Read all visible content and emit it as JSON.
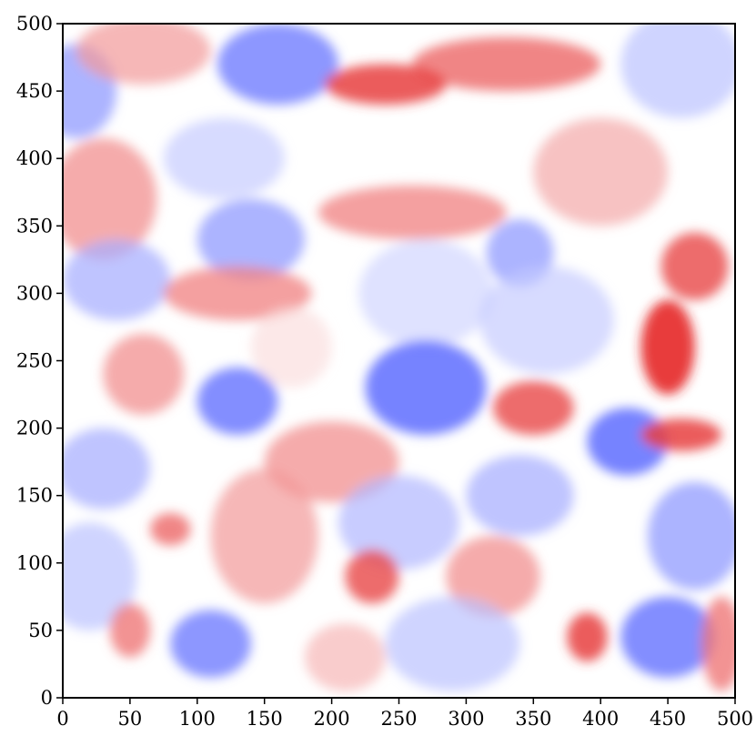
{
  "chart_data": {
    "type": "heatmap",
    "title": "",
    "xlabel": "",
    "ylabel": "",
    "xlim": [
      0,
      500
    ],
    "ylim": [
      0,
      500
    ],
    "x_ticks": [
      0,
      50,
      100,
      150,
      200,
      250,
      300,
      350,
      400,
      450,
      500
    ],
    "y_ticks": [
      0,
      50,
      100,
      150,
      200,
      250,
      300,
      350,
      400,
      450,
      500
    ],
    "x_tick_labels": [
      "0",
      "50",
      "100",
      "150",
      "200",
      "250",
      "300",
      "350",
      "400",
      "450",
      "500"
    ],
    "y_tick_labels": [
      "0",
      "50",
      "100",
      "150",
      "200",
      "250",
      "300",
      "350",
      "400",
      "450",
      "500"
    ],
    "grid": false,
    "legend": "none",
    "colormap": {
      "name": "diverging blue-white-red",
      "low_color": "#3b4cff",
      "mid_color": "#ffffff",
      "high_color": "#e00000"
    },
    "features": [
      {
        "x": 10,
        "y": 450,
        "value": -0.55,
        "sx": 30,
        "sy": 35
      },
      {
        "x": 160,
        "y": 470,
        "value": -0.7,
        "sx": 45,
        "sy": 30
      },
      {
        "x": 330,
        "y": 470,
        "value": 0.6,
        "sx": 70,
        "sy": 20
      },
      {
        "x": 240,
        "y": 455,
        "value": 0.75,
        "sx": 45,
        "sy": 15
      },
      {
        "x": 60,
        "y": 480,
        "value": 0.4,
        "sx": 50,
        "sy": 25
      },
      {
        "x": 460,
        "y": 470,
        "value": -0.35,
        "sx": 45,
        "sy": 40
      },
      {
        "x": 30,
        "y": 370,
        "value": 0.45,
        "sx": 40,
        "sy": 45
      },
      {
        "x": 120,
        "y": 400,
        "value": -0.3,
        "sx": 45,
        "sy": 30
      },
      {
        "x": 260,
        "y": 360,
        "value": 0.5,
        "sx": 70,
        "sy": 20
      },
      {
        "x": 340,
        "y": 330,
        "value": -0.55,
        "sx": 25,
        "sy": 25
      },
      {
        "x": 400,
        "y": 390,
        "value": 0.35,
        "sx": 50,
        "sy": 40
      },
      {
        "x": 140,
        "y": 340,
        "value": -0.55,
        "sx": 40,
        "sy": 30
      },
      {
        "x": 40,
        "y": 310,
        "value": -0.45,
        "sx": 40,
        "sy": 30
      },
      {
        "x": 130,
        "y": 300,
        "value": 0.5,
        "sx": 55,
        "sy": 20
      },
      {
        "x": 270,
        "y": 300,
        "value": -0.25,
        "sx": 50,
        "sy": 40
      },
      {
        "x": 360,
        "y": 280,
        "value": -0.3,
        "sx": 50,
        "sy": 40
      },
      {
        "x": 470,
        "y": 320,
        "value": 0.7,
        "sx": 25,
        "sy": 25
      },
      {
        "x": 450,
        "y": 260,
        "value": 0.85,
        "sx": 20,
        "sy": 35
      },
      {
        "x": 60,
        "y": 240,
        "value": 0.45,
        "sx": 30,
        "sy": 30
      },
      {
        "x": 130,
        "y": 220,
        "value": -0.75,
        "sx": 30,
        "sy": 25
      },
      {
        "x": 270,
        "y": 230,
        "value": -0.8,
        "sx": 45,
        "sy": 35
      },
      {
        "x": 350,
        "y": 215,
        "value": 0.7,
        "sx": 30,
        "sy": 20
      },
      {
        "x": 420,
        "y": 190,
        "value": -0.8,
        "sx": 30,
        "sy": 25
      },
      {
        "x": 460,
        "y": 195,
        "value": 0.75,
        "sx": 30,
        "sy": 12
      },
      {
        "x": 30,
        "y": 170,
        "value": -0.45,
        "sx": 35,
        "sy": 30
      },
      {
        "x": 200,
        "y": 175,
        "value": 0.45,
        "sx": 50,
        "sy": 30
      },
      {
        "x": 150,
        "y": 120,
        "value": 0.4,
        "sx": 40,
        "sy": 50
      },
      {
        "x": 80,
        "y": 125,
        "value": 0.6,
        "sx": 15,
        "sy": 12
      },
      {
        "x": 250,
        "y": 130,
        "value": -0.4,
        "sx": 45,
        "sy": 35
      },
      {
        "x": 340,
        "y": 150,
        "value": -0.45,
        "sx": 40,
        "sy": 30
      },
      {
        "x": 470,
        "y": 120,
        "value": -0.55,
        "sx": 35,
        "sy": 40
      },
      {
        "x": 230,
        "y": 90,
        "value": 0.7,
        "sx": 20,
        "sy": 20
      },
      {
        "x": 320,
        "y": 90,
        "value": 0.45,
        "sx": 35,
        "sy": 30
      },
      {
        "x": 20,
        "y": 90,
        "value": -0.35,
        "sx": 35,
        "sy": 40
      },
      {
        "x": 110,
        "y": 40,
        "value": -0.7,
        "sx": 30,
        "sy": 25
      },
      {
        "x": 50,
        "y": 50,
        "value": 0.55,
        "sx": 15,
        "sy": 20
      },
      {
        "x": 290,
        "y": 40,
        "value": -0.35,
        "sx": 50,
        "sy": 35
      },
      {
        "x": 390,
        "y": 45,
        "value": 0.75,
        "sx": 15,
        "sy": 18
      },
      {
        "x": 450,
        "y": 45,
        "value": -0.75,
        "sx": 35,
        "sy": 30
      },
      {
        "x": 490,
        "y": 40,
        "value": 0.55,
        "sx": 15,
        "sy": 35
      },
      {
        "x": 210,
        "y": 30,
        "value": 0.3,
        "sx": 30,
        "sy": 25
      },
      {
        "x": 170,
        "y": 260,
        "value": 0.15,
        "sx": 30,
        "sy": 30
      }
    ]
  }
}
